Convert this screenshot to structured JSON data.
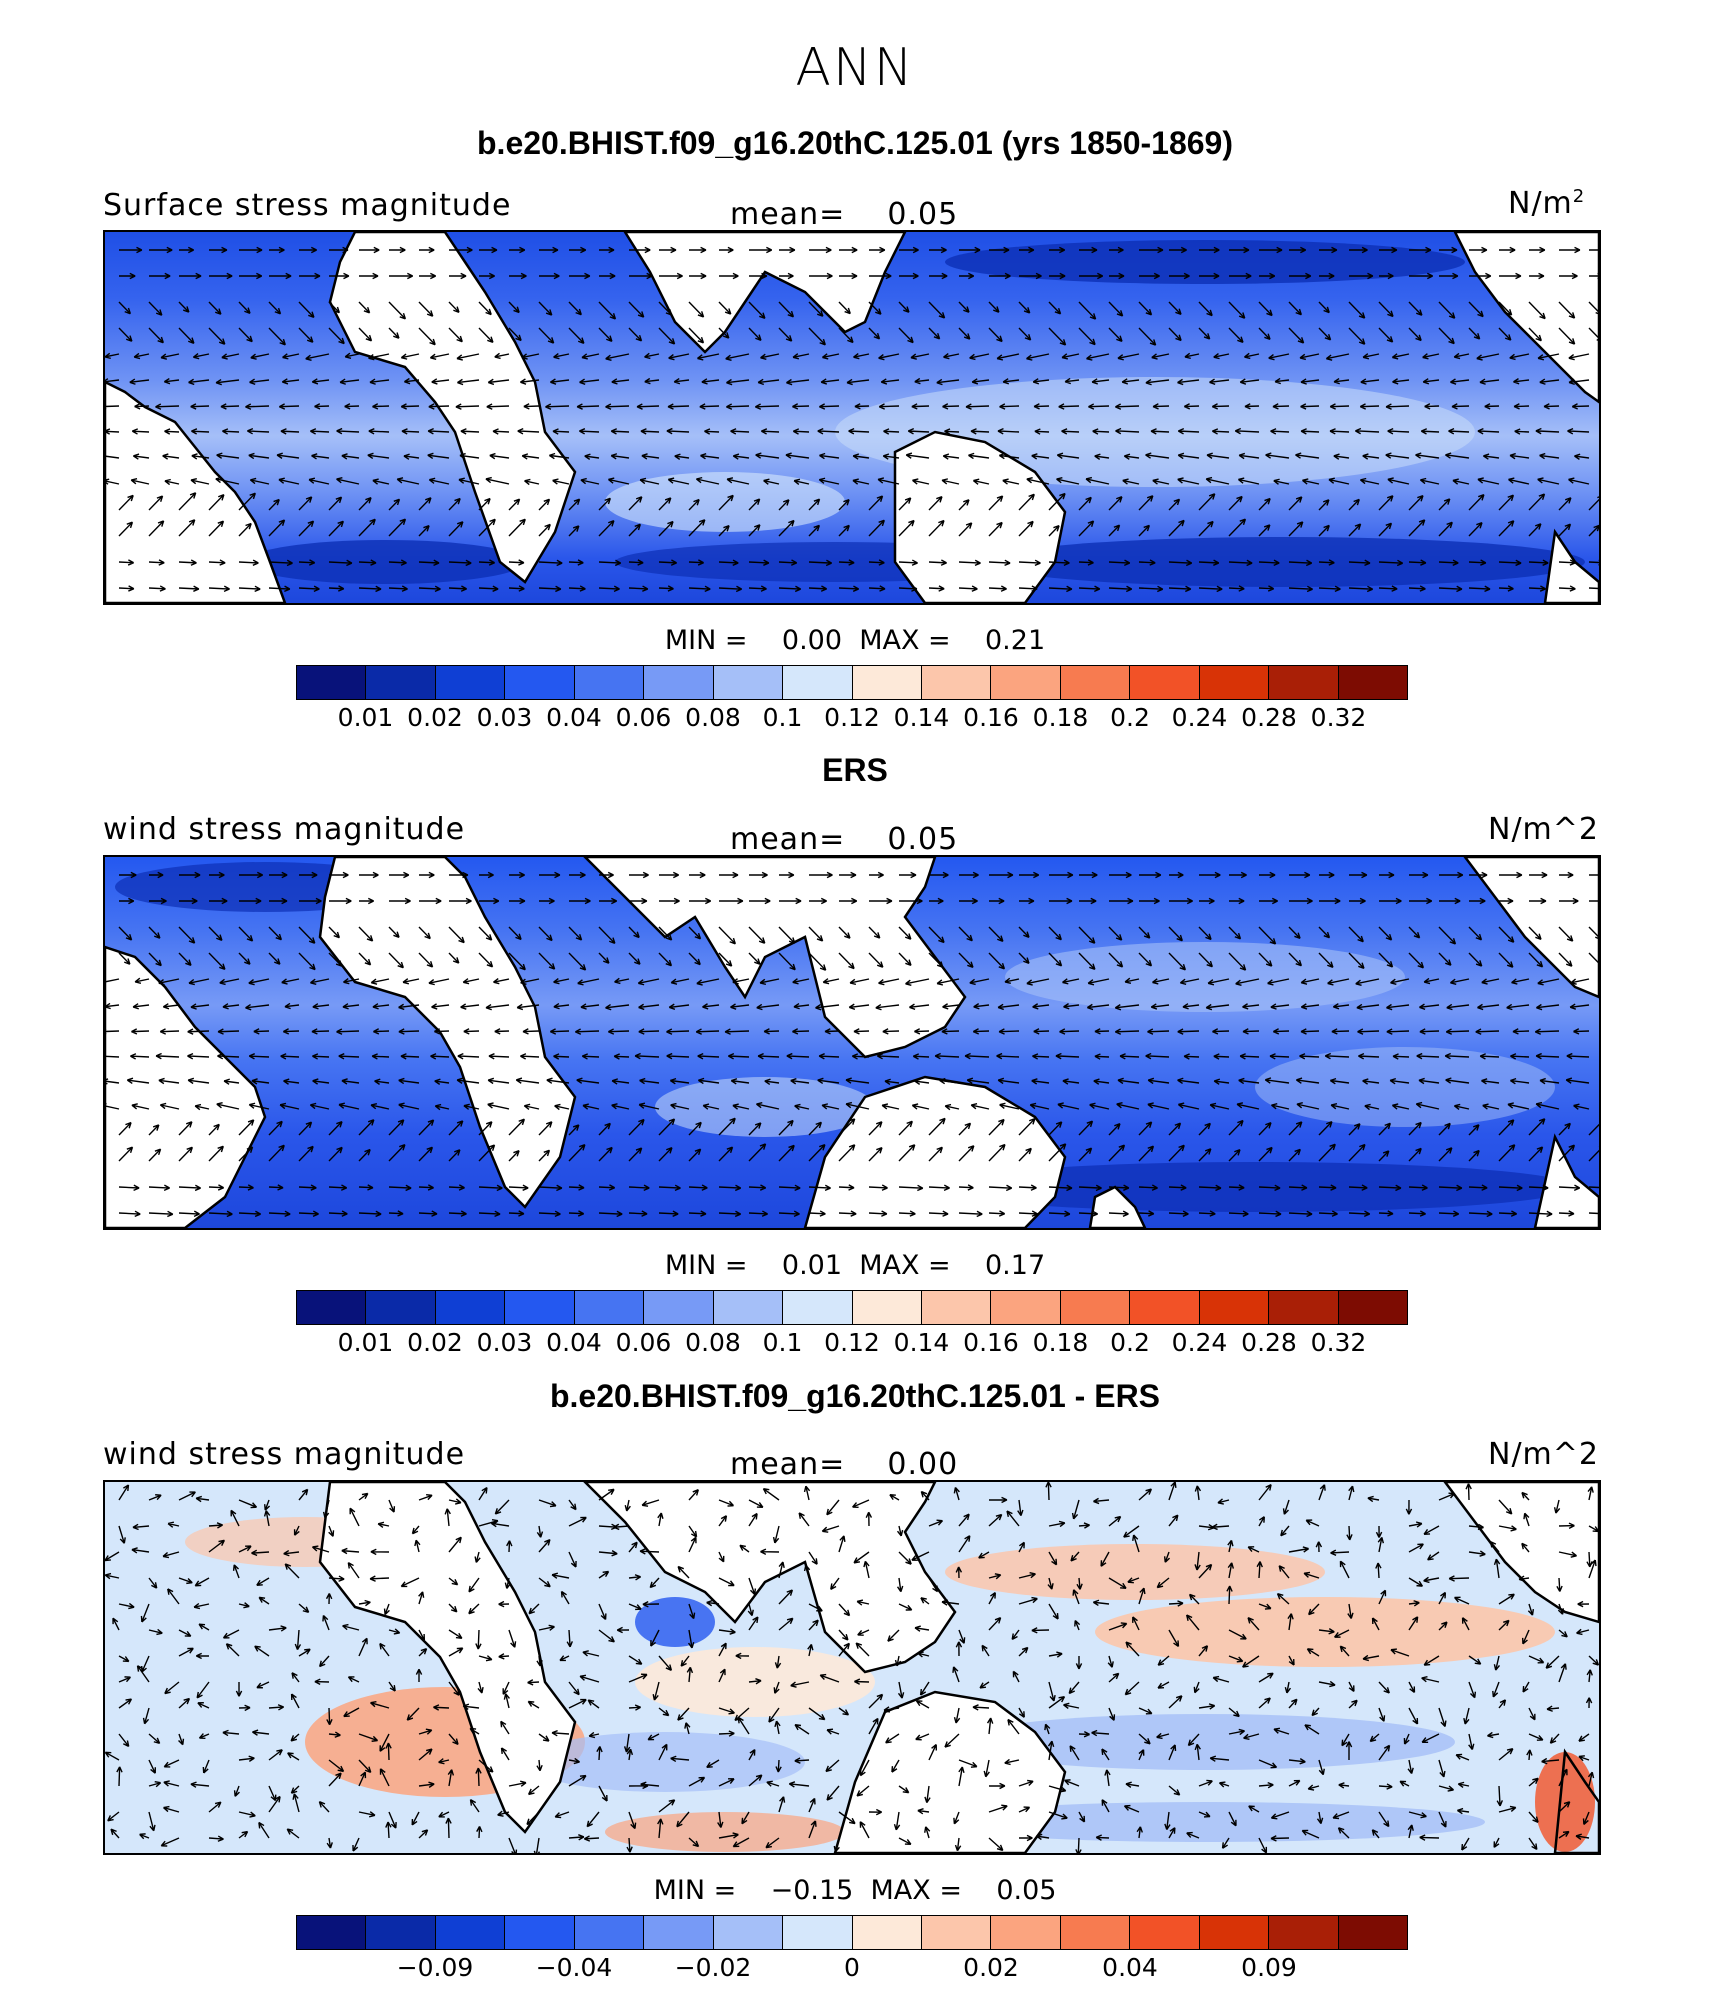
{
  "figure": {
    "title": "ANN",
    "colors": {
      "abs_scale": [
        "#08127a",
        "#0a2aa8",
        "#0f3fd4",
        "#2458f0",
        "#4674f2",
        "#779af6",
        "#a5bff8",
        "#d5e7fb",
        "#fde9d9",
        "#fcc6ab",
        "#fba47f",
        "#f77b50",
        "#f25227",
        "#d83306",
        "#a91f06",
        "#7d0c02"
      ],
      "diff_scale": [
        "#08127a",
        "#0a2aa8",
        "#0f3fd4",
        "#2458f0",
        "#4674f2",
        "#779af6",
        "#a5bff8",
        "#d5e7fb",
        "#fde9d9",
        "#fcc6ab",
        "#fba47f",
        "#f77b50",
        "#f25227",
        "#d83306",
        "#a91f06",
        "#7d0c02"
      ]
    }
  },
  "panels": [
    {
      "title": "b.e20.BHIST.f09_g16.20thC.125.01 (yrs 1850-1869)",
      "left_label": "Surface stress magnitude",
      "mean_label": "mean=",
      "mean_value": "0.05",
      "units_base": "N/m",
      "units_sup": "2",
      "min_label": "MIN =",
      "min_value": "0.00",
      "max_label": "MAX =",
      "max_value": "0.21",
      "ticks": [
        "0.01",
        "0.02",
        "0.03",
        "0.04",
        "0.06",
        "0.08",
        "0.1",
        "0.12",
        "0.14",
        "0.16",
        "0.18",
        "0.2",
        "0.24",
        "0.28",
        "0.32"
      ]
    },
    {
      "title": "ERS",
      "left_label": "wind stress magnitude",
      "mean_label": "mean=",
      "mean_value": "0.05",
      "units": "N/m^2",
      "min_label": "MIN =",
      "min_value": "0.01",
      "max_label": "MAX =",
      "max_value": "0.17",
      "ticks": [
        "0.01",
        "0.02",
        "0.03",
        "0.04",
        "0.06",
        "0.08",
        "0.1",
        "0.12",
        "0.14",
        "0.16",
        "0.18",
        "0.2",
        "0.24",
        "0.28",
        "0.32"
      ]
    },
    {
      "title": "b.e20.BHIST.f09_g16.20thC.125.01 - ERS",
      "left_label": "wind stress magnitude",
      "mean_label": "mean=",
      "mean_value": "0.00",
      "units": "N/m^2",
      "min_label": "MIN =",
      "min_value": "−0.15",
      "max_label": "MAX =",
      "max_value": "0.05",
      "ticks": [
        "−0.09",
        "−0.04",
        "−0.02",
        "0",
        "0.02",
        "0.04",
        "0.09"
      ]
    }
  ]
}
